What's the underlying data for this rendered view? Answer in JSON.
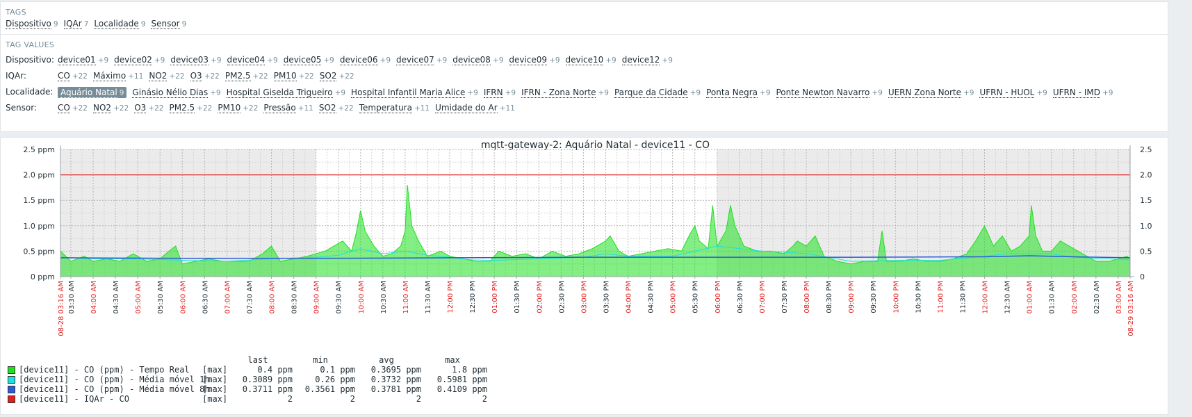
{
  "tags": {
    "title": "TAGS",
    "items": [
      {
        "name": "Dispositivo",
        "count": "9"
      },
      {
        "name": "IQAr",
        "count": "7"
      },
      {
        "name": "Localidade",
        "count": "9"
      },
      {
        "name": "Sensor",
        "count": "9"
      }
    ]
  },
  "tag_values": {
    "title": "TAG VALUES",
    "rows": [
      {
        "label": "Dispositivo:",
        "items": [
          {
            "name": "device01",
            "count": "+9"
          },
          {
            "name": "device02",
            "count": "+9"
          },
          {
            "name": "device03",
            "count": "+9"
          },
          {
            "name": "device04",
            "count": "+9"
          },
          {
            "name": "device05",
            "count": "+9"
          },
          {
            "name": "device06",
            "count": "+9"
          },
          {
            "name": "device07",
            "count": "+9"
          },
          {
            "name": "device08",
            "count": "+9"
          },
          {
            "name": "device09",
            "count": "+9"
          },
          {
            "name": "device10",
            "count": "+9"
          },
          {
            "name": "device12",
            "count": "+9"
          }
        ]
      },
      {
        "label": "IQAr:",
        "items": [
          {
            "name": "CO",
            "count": "+22"
          },
          {
            "name": "Máximo",
            "count": "+11"
          },
          {
            "name": "NO2",
            "count": "+22"
          },
          {
            "name": "O3",
            "count": "+22"
          },
          {
            "name": "PM2.5",
            "count": "+22"
          },
          {
            "name": "PM10",
            "count": "+22"
          },
          {
            "name": "SO2",
            "count": "+22"
          }
        ]
      },
      {
        "label": "Localidade:",
        "items": [
          {
            "name": "Aquário Natal",
            "count": "9",
            "selected": true
          },
          {
            "name": "Ginásio Nélio Dias",
            "count": "+9"
          },
          {
            "name": "Hospital Giselda Trigueiro",
            "count": "+9"
          },
          {
            "name": "Hospital Infantil Maria Alice",
            "count": "+9"
          },
          {
            "name": "IFRN",
            "count": "+9"
          },
          {
            "name": "IFRN - Zona Norte",
            "count": "+9"
          },
          {
            "name": "Parque da Cidade",
            "count": "+9"
          },
          {
            "name": "Ponta Negra",
            "count": "+9"
          },
          {
            "name": "Ponte Newton Navarro",
            "count": "+9"
          },
          {
            "name": "UERN Zona Norte",
            "count": "+9"
          },
          {
            "name": "UFRN - HUOL",
            "count": "+9"
          },
          {
            "name": "UFRN - IMD",
            "count": "+9"
          }
        ]
      },
      {
        "label": "Sensor:",
        "items": [
          {
            "name": "CO",
            "count": "+22"
          },
          {
            "name": "NO2",
            "count": "+22"
          },
          {
            "name": "O3",
            "count": "+22"
          },
          {
            "name": "PM2.5",
            "count": "+22"
          },
          {
            "name": "PM10",
            "count": "+22"
          },
          {
            "name": "Pressão",
            "count": "+11"
          },
          {
            "name": "SO2",
            "count": "+22"
          },
          {
            "name": "Temperatura",
            "count": "+11"
          },
          {
            "name": "Umidade do Ar",
            "count": "+11"
          }
        ]
      }
    ]
  },
  "colors": {
    "real": "#1ee01e",
    "avg1h": "#1ee0e0",
    "avg8h": "#2a5bd8",
    "threshold": "#e02020",
    "redlabel": "#e02020"
  },
  "chart_data": {
    "type": "line",
    "title": "mqtt-gateway-2: Aquário Natal - device11 - CO",
    "y_ticks_left": [
      "0 ppm",
      "0.5 ppm",
      "1.0 ppm",
      "1.5 ppm",
      "2.0 ppm",
      "2.5 ppm"
    ],
    "y_ticks_right": [
      "0",
      "0.5",
      "1.0",
      "1.5",
      "2.0",
      "2.5"
    ],
    "ylim": [
      0,
      2.5
    ],
    "x_labels": [
      {
        "t": "08-28 03:16 AM",
        "h": 3.2667,
        "red": true
      },
      {
        "t": "03:30 AM",
        "h": 3.5,
        "red": false
      },
      {
        "t": "04:00 AM",
        "h": 4,
        "red": true
      },
      {
        "t": "04:30 AM",
        "h": 4.5,
        "red": false
      },
      {
        "t": "05:00 AM",
        "h": 5,
        "red": true
      },
      {
        "t": "05:30 AM",
        "h": 5.5,
        "red": false
      },
      {
        "t": "06:00 AM",
        "h": 6,
        "red": true
      },
      {
        "t": "06:30 AM",
        "h": 6.5,
        "red": false
      },
      {
        "t": "07:00 AM",
        "h": 7,
        "red": true
      },
      {
        "t": "07:30 AM",
        "h": 7.5,
        "red": false
      },
      {
        "t": "08:00 AM",
        "h": 8,
        "red": true
      },
      {
        "t": "08:30 AM",
        "h": 8.5,
        "red": false
      },
      {
        "t": "09:00 AM",
        "h": 9,
        "red": true
      },
      {
        "t": "09:30 AM",
        "h": 9.5,
        "red": false
      },
      {
        "t": "10:00 AM",
        "h": 10,
        "red": true
      },
      {
        "t": "10:30 AM",
        "h": 10.5,
        "red": false
      },
      {
        "t": "11:00 AM",
        "h": 11,
        "red": true
      },
      {
        "t": "11:30 AM",
        "h": 11.5,
        "red": false
      },
      {
        "t": "12:00 PM",
        "h": 12,
        "red": true
      },
      {
        "t": "12:30 PM",
        "h": 12.5,
        "red": false
      },
      {
        "t": "01:00 PM",
        "h": 13,
        "red": true
      },
      {
        "t": "01:30 PM",
        "h": 13.5,
        "red": false
      },
      {
        "t": "02:00 PM",
        "h": 14,
        "red": true
      },
      {
        "t": "02:30 PM",
        "h": 14.5,
        "red": false
      },
      {
        "t": "03:00 PM",
        "h": 15,
        "red": true
      },
      {
        "t": "03:30 PM",
        "h": 15.5,
        "red": false
      },
      {
        "t": "04:00 PM",
        "h": 16,
        "red": true
      },
      {
        "t": "04:30 PM",
        "h": 16.5,
        "red": false
      },
      {
        "t": "05:00 PM",
        "h": 17,
        "red": true
      },
      {
        "t": "05:30 PM",
        "h": 17.5,
        "red": false
      },
      {
        "t": "06:00 PM",
        "h": 18,
        "red": true
      },
      {
        "t": "06:30 PM",
        "h": 18.5,
        "red": false
      },
      {
        "t": "07:00 PM",
        "h": 19,
        "red": true
      },
      {
        "t": "07:30 PM",
        "h": 19.5,
        "red": false
      },
      {
        "t": "08:00 PM",
        "h": 20,
        "red": true
      },
      {
        "t": "08:30 PM",
        "h": 20.5,
        "red": false
      },
      {
        "t": "09:00 PM",
        "h": 21,
        "red": true
      },
      {
        "t": "09:30 PM",
        "h": 21.5,
        "red": false
      },
      {
        "t": "10:00 PM",
        "h": 22,
        "red": true
      },
      {
        "t": "10:30 PM",
        "h": 22.5,
        "red": false
      },
      {
        "t": "11:00 PM",
        "h": 23,
        "red": true
      },
      {
        "t": "11:30 PM",
        "h": 23.5,
        "red": false
      },
      {
        "t": "12:00 AM",
        "h": 24,
        "red": true
      },
      {
        "t": "12:30 AM",
        "h": 24.5,
        "red": false
      },
      {
        "t": "01:00 AM",
        "h": 25,
        "red": true
      },
      {
        "t": "01:30 AM",
        "h": 25.5,
        "red": false
      },
      {
        "t": "02:00 AM",
        "h": 26,
        "red": true
      },
      {
        "t": "02:30 AM",
        "h": 26.5,
        "red": false
      },
      {
        "t": "03:00 AM",
        "h": 27,
        "red": true
      },
      {
        "t": "08-29 03:16 AM",
        "h": 27.2667,
        "red": true
      }
    ],
    "x_start_h": 3.2667,
    "x_end_h": 27.2667,
    "night_ranges_h": [
      [
        3.2667,
        9
      ],
      [
        18,
        27.2667
      ]
    ],
    "threshold": 2.0,
    "real_series": [
      [
        3.27,
        0.5
      ],
      [
        3.5,
        0.3
      ],
      [
        3.8,
        0.4
      ],
      [
        4.0,
        0.3
      ],
      [
        4.3,
        0.35
      ],
      [
        4.6,
        0.3
      ],
      [
        4.9,
        0.45
      ],
      [
        5.2,
        0.3
      ],
      [
        5.5,
        0.35
      ],
      [
        5.7,
        0.5
      ],
      [
        5.85,
        0.6
      ],
      [
        6.0,
        0.25
      ],
      [
        6.3,
        0.3
      ],
      [
        6.6,
        0.35
      ],
      [
        6.9,
        0.3
      ],
      [
        7.2,
        0.3
      ],
      [
        7.5,
        0.3
      ],
      [
        7.8,
        0.45
      ],
      [
        8.0,
        0.6
      ],
      [
        8.2,
        0.3
      ],
      [
        8.5,
        0.35
      ],
      [
        8.8,
        0.4
      ],
      [
        9.0,
        0.45
      ],
      [
        9.2,
        0.5
      ],
      [
        9.4,
        0.6
      ],
      [
        9.6,
        0.7
      ],
      [
        9.8,
        0.5
      ],
      [
        9.9,
        0.85
      ],
      [
        10.0,
        1.3
      ],
      [
        10.1,
        0.9
      ],
      [
        10.3,
        0.6
      ],
      [
        10.5,
        0.4
      ],
      [
        10.7,
        0.45
      ],
      [
        10.9,
        0.6
      ],
      [
        11.0,
        0.9
      ],
      [
        11.05,
        1.8
      ],
      [
        11.15,
        1.0
      ],
      [
        11.3,
        0.7
      ],
      [
        11.5,
        0.4
      ],
      [
        11.8,
        0.5
      ],
      [
        12.0,
        0.4
      ],
      [
        12.3,
        0.35
      ],
      [
        12.6,
        0.3
      ],
      [
        12.9,
        0.3
      ],
      [
        13.1,
        0.5
      ],
      [
        13.4,
        0.4
      ],
      [
        13.7,
        0.45
      ],
      [
        14.0,
        0.35
      ],
      [
        14.3,
        0.5
      ],
      [
        14.6,
        0.4
      ],
      [
        14.9,
        0.45
      ],
      [
        15.2,
        0.55
      ],
      [
        15.5,
        0.7
      ],
      [
        15.6,
        0.8
      ],
      [
        15.8,
        0.5
      ],
      [
        16.0,
        0.4
      ],
      [
        16.3,
        0.45
      ],
      [
        16.6,
        0.5
      ],
      [
        16.9,
        0.55
      ],
      [
        17.2,
        0.5
      ],
      [
        17.4,
        0.85
      ],
      [
        17.5,
        1.0
      ],
      [
        17.6,
        0.7
      ],
      [
        17.8,
        0.55
      ],
      [
        17.9,
        1.4
      ],
      [
        18.0,
        0.6
      ],
      [
        18.2,
        0.9
      ],
      [
        18.3,
        1.4
      ],
      [
        18.4,
        1.0
      ],
      [
        18.6,
        0.6
      ],
      [
        18.9,
        0.5
      ],
      [
        19.2,
        0.5
      ],
      [
        19.5,
        0.45
      ],
      [
        19.7,
        0.6
      ],
      [
        19.8,
        0.7
      ],
      [
        20.0,
        0.6
      ],
      [
        20.2,
        0.8
      ],
      [
        20.4,
        0.4
      ],
      [
        20.7,
        0.3
      ],
      [
        21.0,
        0.25
      ],
      [
        21.3,
        0.3
      ],
      [
        21.6,
        0.3
      ],
      [
        21.7,
        0.9
      ],
      [
        21.8,
        0.3
      ],
      [
        22.1,
        0.3
      ],
      [
        22.4,
        0.35
      ],
      [
        22.7,
        0.3
      ],
      [
        23.0,
        0.3
      ],
      [
        23.3,
        0.35
      ],
      [
        23.6,
        0.45
      ],
      [
        23.8,
        0.7
      ],
      [
        24.0,
        1.0
      ],
      [
        24.2,
        0.6
      ],
      [
        24.4,
        0.8
      ],
      [
        24.6,
        0.5
      ],
      [
        24.8,
        0.6
      ],
      [
        25.0,
        0.8
      ],
      [
        25.05,
        1.4
      ],
      [
        25.15,
        0.8
      ],
      [
        25.3,
        0.5
      ],
      [
        25.5,
        0.5
      ],
      [
        25.7,
        0.7
      ],
      [
        25.9,
        0.6
      ],
      [
        26.1,
        0.5
      ],
      [
        26.3,
        0.4
      ],
      [
        26.5,
        0.3
      ],
      [
        26.8,
        0.3
      ],
      [
        27.0,
        0.35
      ],
      [
        27.2,
        0.4
      ],
      [
        27.27,
        0.35
      ]
    ],
    "avg1h_series": [
      [
        3.27,
        0.38
      ],
      [
        4.0,
        0.35
      ],
      [
        5.0,
        0.35
      ],
      [
        6.0,
        0.32
      ],
      [
        7.0,
        0.3
      ],
      [
        8.0,
        0.35
      ],
      [
        9.0,
        0.38
      ],
      [
        9.5,
        0.42
      ],
      [
        10.0,
        0.55
      ],
      [
        10.5,
        0.45
      ],
      [
        11.0,
        0.5
      ],
      [
        11.5,
        0.42
      ],
      [
        12.0,
        0.38
      ],
      [
        12.5,
        0.33
      ],
      [
        13.0,
        0.32
      ],
      [
        14.0,
        0.35
      ],
      [
        15.0,
        0.38
      ],
      [
        15.5,
        0.45
      ],
      [
        16.0,
        0.4
      ],
      [
        17.0,
        0.4
      ],
      [
        17.5,
        0.5
      ],
      [
        18.0,
        0.6
      ],
      [
        18.5,
        0.55
      ],
      [
        19.0,
        0.5
      ],
      [
        19.5,
        0.48
      ],
      [
        20.0,
        0.45
      ],
      [
        20.5,
        0.38
      ],
      [
        21.0,
        0.3
      ],
      [
        22.0,
        0.32
      ],
      [
        23.0,
        0.32
      ],
      [
        24.0,
        0.4
      ],
      [
        24.5,
        0.45
      ],
      [
        25.0,
        0.45
      ],
      [
        25.5,
        0.45
      ],
      [
        26.0,
        0.38
      ],
      [
        27.27,
        0.33
      ]
    ],
    "avg8h_series": [
      [
        3.27,
        0.37
      ],
      [
        6.0,
        0.36
      ],
      [
        9.0,
        0.36
      ],
      [
        12.0,
        0.37
      ],
      [
        15.0,
        0.38
      ],
      [
        18.0,
        0.38
      ],
      [
        21.0,
        0.38
      ],
      [
        24.0,
        0.39
      ],
      [
        25.0,
        0.41
      ],
      [
        26.0,
        0.39
      ],
      [
        27.27,
        0.37
      ]
    ],
    "legend": {
      "head": {
        "last": "last",
        "min": "min",
        "avg": "avg",
        "max": "max"
      },
      "rows": [
        {
          "name": "[device11] - CO (ppm) - Tempo Real",
          "fn": "[max]",
          "last": "0.4 ppm",
          "min": "0.1 ppm",
          "avg": "0.3695 ppm",
          "max": "1.8 ppm",
          "color": "#1ee01e"
        },
        {
          "name": "[device11] - CO (ppm) - Média móvel 1h",
          "fn": "[max]",
          "last": "0.3089 ppm",
          "min": "0.26 ppm",
          "avg": "0.3732 ppm",
          "max": "0.5981 ppm",
          "color": "#1ee0e0"
        },
        {
          "name": "[device11] - CO (ppm) - Média móvel 8h",
          "fn": "[max]",
          "last": "0.3711 ppm",
          "min": "0.3561 ppm",
          "avg": "0.3781 ppm",
          "max": "0.4109 ppm",
          "color": "#2a5bd8"
        },
        {
          "name": "[device11] - IQAr - CO",
          "fn": "[max]",
          "last": "2",
          "min": "2",
          "avg": "2",
          "max": "2",
          "color": "#e02020"
        }
      ]
    }
  }
}
